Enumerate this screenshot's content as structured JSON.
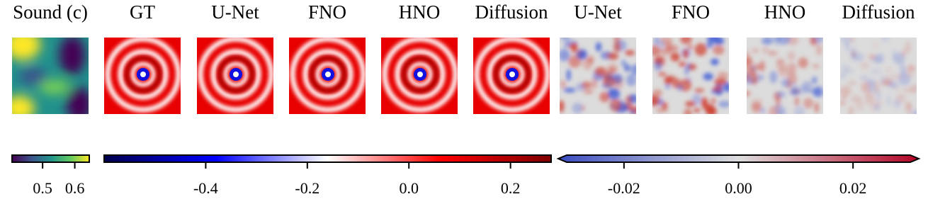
{
  "titles": [
    "Sound (c)",
    "GT",
    "U-Net",
    "FNO",
    "HNO",
    "Diffusion",
    "U-Net",
    "FNO",
    "HNO",
    "Diffusion"
  ],
  "colorbars": [
    {
      "lim": [
        0.405,
        0.645
      ],
      "ticks": [
        0.5,
        0.6
      ]
    },
    {
      "lim": [
        -0.6,
        0.28
      ],
      "ticks": [
        -0.4,
        -0.2,
        {
          "value": 0,
          "label": "0.0"
        },
        0.2
      ]
    },
    {
      "lim": [
        -0.03,
        0.03
      ],
      "ticks": [
        -0.02,
        {
          "value": 0,
          "label": "0.00"
        },
        0.02
      ]
    }
  ]
}
